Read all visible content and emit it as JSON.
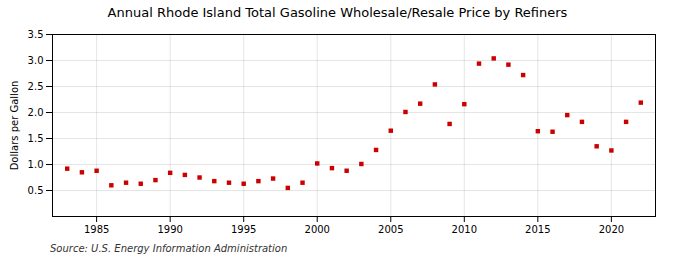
{
  "chart_data": {
    "type": "scatter",
    "title": "Annual Rhode Island Total Gasoline Wholesale/Resale Price by Refiners",
    "ylabel": "Dollars per Gallon",
    "source": "Source: U.S. Energy Information Administration",
    "x": [
      1983,
      1984,
      1985,
      1986,
      1987,
      1988,
      1989,
      1990,
      1991,
      1992,
      1993,
      1994,
      1995,
      1996,
      1997,
      1998,
      1999,
      2000,
      2001,
      2002,
      2003,
      2004,
      2005,
      2006,
      2007,
      2008,
      2009,
      2010,
      2011,
      2012,
      2013,
      2014,
      2015,
      2016,
      2017,
      2018,
      2019,
      2020,
      2021,
      2022
    ],
    "values": [
      0.92,
      0.85,
      0.88,
      0.6,
      0.65,
      0.63,
      0.7,
      0.84,
      0.8,
      0.75,
      0.68,
      0.65,
      0.63,
      0.68,
      0.73,
      0.55,
      0.65,
      1.02,
      0.93,
      0.88,
      1.01,
      1.28,
      1.65,
      2.01,
      2.17,
      2.54,
      1.78,
      2.16,
      2.94,
      3.04,
      2.92,
      2.72,
      1.64,
      1.63,
      1.95,
      1.82,
      1.35,
      1.27,
      1.82,
      2.19
    ],
    "color": "#cc0000",
    "marker": "square",
    "xlim": [
      1982,
      2023
    ],
    "xticks": [
      1985,
      1990,
      1995,
      2000,
      2005,
      2010,
      2015,
      2020
    ],
    "ylim": [
      0.0,
      3.5
    ],
    "yticks": [
      0.5,
      {
        "value": 1.0,
        "label": "1.0"
      },
      1.5,
      {
        "value": 2.0,
        "label": "2.0"
      },
      2.5,
      {
        "value": 3.0,
        "label": "3.0"
      },
      3.5
    ],
    "grid": true
  }
}
